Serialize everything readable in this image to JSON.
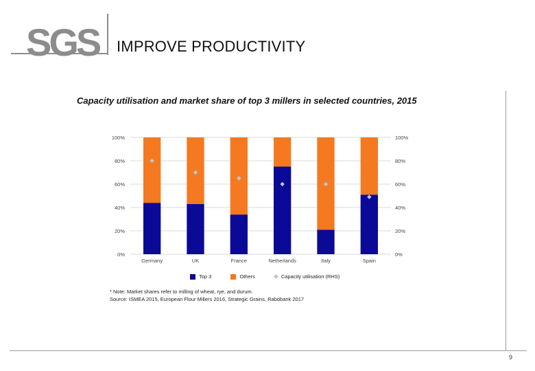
{
  "logo": {
    "text": "SGS"
  },
  "header": {
    "title": "IMPROVE PRODUCTIVITY"
  },
  "colors": {
    "top3": "#0a0a96",
    "others": "#f47920",
    "capacity": "#bcc7d6",
    "grid": "#d9d9d9",
    "axis_text": "#444444"
  },
  "chart_data": {
    "type": "bar",
    "stacked": true,
    "title": "Capacity utilisation and market share of top 3 millers in selected countries, 2015",
    "categories": [
      "Germany",
      "UK",
      "France",
      "Netherlands",
      "Italy",
      "Spain"
    ],
    "series": [
      {
        "name": "Top 3",
        "values": [
          44,
          43,
          34,
          75,
          21,
          51
        ]
      },
      {
        "name": "Others",
        "values": [
          56,
          57,
          66,
          25,
          79,
          49
        ]
      }
    ],
    "line_series": {
      "name": "Capacity utilisation (RHS)",
      "values": [
        80,
        70,
        65,
        60,
        60,
        49
      ]
    },
    "y_ticks": [
      "0%",
      "20%",
      "40%",
      "60%",
      "80%",
      "100%"
    ],
    "y2_ticks": [
      "0%",
      "20%",
      "40%",
      "60%",
      "80%",
      "100%"
    ],
    "ylim": [
      0,
      100
    ],
    "y2lim": [
      0,
      100
    ],
    "legend": [
      "Top 3",
      "Others",
      "Capacity utilisation (RHS)"
    ]
  },
  "notes": {
    "line1": "* Note: Market shares refer to milling of wheat, rye, and durum.",
    "line2": "Source: ISMEA 2015, European Flour Millers 2016, Strategic Grains, Rabobank 2017"
  },
  "footer": {
    "page_number": "9"
  }
}
